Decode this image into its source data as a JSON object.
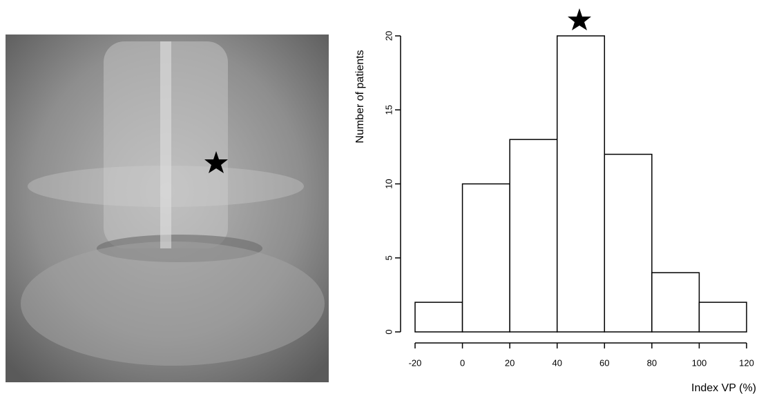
{
  "chart_data": {
    "type": "histogram",
    "x_label": "Index VP (%)",
    "y_label": "Number of patients",
    "bins": [
      -20,
      0,
      20,
      40,
      60,
      80,
      100,
      120
    ],
    "counts": [
      2,
      10,
      13,
      20,
      12,
      4,
      2
    ],
    "color": "#ffffff",
    "xlim": [
      -20,
      120
    ],
    "xticks": [
      -20,
      0,
      20,
      40,
      60,
      80,
      100,
      120
    ],
    "ylim": [
      0,
      20
    ],
    "yticks": [
      0,
      5,
      10,
      15,
      20
    ]
  }
}
